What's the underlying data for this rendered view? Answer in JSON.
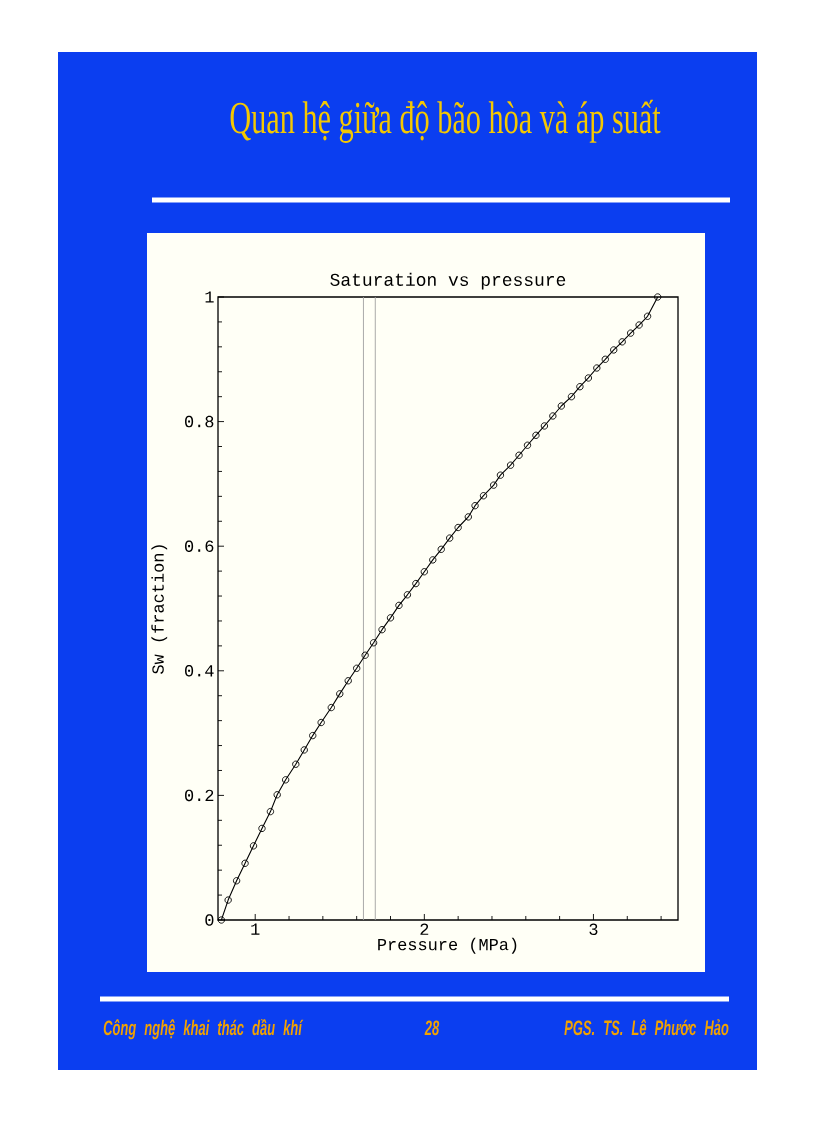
{
  "chart_data": {
    "type": "line",
    "title": "Quan hệ giữa độ bão hòa và áp suất",
    "subtitle": "Saturation vs pressure",
    "xlabel": "Pressure (MPa)",
    "ylabel": "Sw (fraction)",
    "annotations": [
      "Công nghệ khai thác dầu khí",
      "28",
      "PGS. TS. Lê Phước Hảo"
    ],
    "x": [
      0.8,
      0.84,
      0.89,
      0.94,
      0.99,
      1.04,
      1.09,
      1.13,
      1.18,
      1.24,
      1.29,
      1.34,
      1.39,
      1.45,
      1.5,
      1.55,
      1.6,
      1.65,
      1.7,
      1.75,
      1.8,
      1.85,
      1.9,
      1.95,
      2.0,
      2.05,
      2.1,
      2.15,
      2.2,
      2.26,
      2.3,
      2.35,
      2.41,
      2.45,
      2.51,
      2.56,
      2.61,
      2.66,
      2.71,
      2.76,
      2.81,
      2.87,
      2.92,
      2.97,
      3.02,
      3.07,
      3.12,
      3.17,
      3.22,
      3.27,
      3.32,
      3.38
    ],
    "values": [
      0.0,
      0.032,
      0.063,
      0.091,
      0.119,
      0.147,
      0.174,
      0.201,
      0.225,
      0.25,
      0.273,
      0.296,
      0.317,
      0.341,
      0.363,
      0.384,
      0.404,
      0.425,
      0.445,
      0.466,
      0.485,
      0.505,
      0.522,
      0.54,
      0.559,
      0.578,
      0.595,
      0.613,
      0.63,
      0.647,
      0.665,
      0.681,
      0.698,
      0.714,
      0.73,
      0.746,
      0.762,
      0.778,
      0.793,
      0.809,
      0.825,
      0.84,
      0.856,
      0.87,
      0.886,
      0.9,
      0.915,
      0.928,
      0.942,
      0.955,
      0.969,
      1.0
    ],
    "color": "#000000",
    "marker": "circle",
    "line_style": "solid",
    "xlim": [
      0.78,
      3.5
    ],
    "ylim": [
      0,
      1
    ],
    "xticks": [
      1,
      {
        "value": 1.2,
        "label": null
      },
      {
        "value": 1.4,
        "label": null
      },
      {
        "value": 1.6,
        "label": null
      },
      {
        "value": 1.8,
        "label": null
      },
      2,
      {
        "value": 2.2,
        "label": null
      },
      {
        "value": 2.4,
        "label": null
      },
      {
        "value": 2.6,
        "label": null
      },
      {
        "value": 2.8,
        "label": null
      },
      3,
      {
        "value": 3.2,
        "label": null
      },
      {
        "value": 3.4,
        "label": null
      }
    ],
    "yticks": [
      0,
      {
        "value": 0.04,
        "label": null
      },
      {
        "value": 0.08,
        "label": null
      },
      {
        "value": 0.12,
        "label": null
      },
      {
        "value": 0.16,
        "label": null
      },
      0.2,
      {
        "value": 0.24,
        "label": null
      },
      {
        "value": 0.28,
        "label": null
      },
      {
        "value": 0.32,
        "label": null
      },
      {
        "value": 0.36,
        "label": null
      },
      0.4,
      {
        "value": 0.44,
        "label": null
      },
      {
        "value": 0.48,
        "label": null
      },
      {
        "value": 0.52,
        "label": null
      },
      {
        "value": 0.56,
        "label": null
      },
      0.6,
      {
        "value": 0.64,
        "label": null
      },
      {
        "value": 0.68,
        "label": null
      },
      {
        "value": 0.72,
        "label": null
      },
      {
        "value": 0.76,
        "label": null
      },
      0.8,
      {
        "value": 0.84,
        "label": null
      },
      {
        "value": 0.88,
        "label": null
      },
      {
        "value": 0.92,
        "label": null
      },
      {
        "value": 0.96,
        "label": null
      },
      1
    ],
    "ref_lines": [
      {
        "axis": "x",
        "value": 1.64,
        "color": "#a0a0a0"
      },
      {
        "axis": "x",
        "value": 1.71,
        "color": "#a0a0a0"
      }
    ]
  }
}
